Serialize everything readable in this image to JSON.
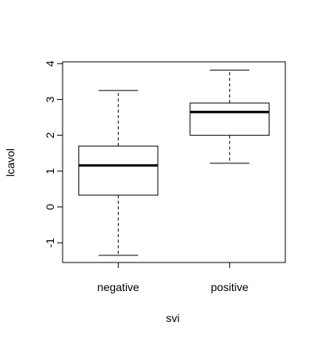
{
  "chart_data": {
    "type": "boxplot",
    "xlabel": "svi",
    "ylabel": "lcavol",
    "ylim": [
      -1.55,
      4.05
    ],
    "y_ticks": [
      -1,
      0,
      1,
      2,
      3,
      4
    ],
    "categories": [
      "negative",
      "positive"
    ],
    "boxes": [
      {
        "name": "negative",
        "whisker_low": -1.35,
        "q1": 0.33,
        "median": 1.16,
        "q3": 1.7,
        "whisker_high": 3.25
      },
      {
        "name": "positive",
        "whisker_low": 1.22,
        "q1": 2.0,
        "median": 2.65,
        "q3": 2.9,
        "whisker_high": 3.82
      }
    ],
    "grid": false,
    "legend": "none"
  }
}
